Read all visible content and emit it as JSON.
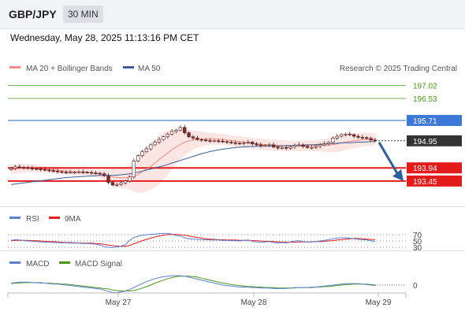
{
  "header": {
    "symbol": "GBP/JPY",
    "timeframe": "30 MIN"
  },
  "datetime": "Wednesday, May 28, 2025 11:13:16 PM CET",
  "copyright": "Research © 2025 Trading Central",
  "colors": {
    "ma20": "#f28b82",
    "ma50": "#3a5f9a",
    "resistance": "#4a9a1a",
    "pivot": "#3b78d8",
    "support": "#e31b1b",
    "last_price": "#333333",
    "arrow": "#2f5e9e",
    "up_candle": "#ffffff",
    "down_candle": "#7a2b2b",
    "rsi": "#5b7fd4",
    "rsi_ma": "#e31b1b",
    "macd": "#5b7fd4",
    "macd_signal": "#4a9a1a"
  },
  "chart_data": [
    {
      "type": "candlestick",
      "title": "GBP/JPY 30 MIN",
      "legend": [
        {
          "name": "MA 20 + Bollinger Bands",
          "color": "#f28b82"
        },
        {
          "name": "MA 50",
          "color": "#3a5f9a"
        }
      ],
      "x_ticks": [
        "May 27",
        "May 28",
        "May 29"
      ],
      "ylim": [
        192.8,
        197.5
      ],
      "last_price": 194.95,
      "levels": [
        {
          "value": 197.02,
          "label": "197.02",
          "kind": "resistance"
        },
        {
          "value": 196.53,
          "label": "196.53",
          "kind": "resistance"
        },
        {
          "value": 195.71,
          "label": "195.71",
          "kind": "pivot"
        },
        {
          "value": 193.94,
          "label": "193.94",
          "kind": "support"
        },
        {
          "value": 193.45,
          "label": "193.45",
          "kind": "support"
        }
      ],
      "forecast": {
        "from": 194.95,
        "to": 193.45,
        "direction": "down"
      },
      "close": [
        193.92,
        193.98,
        193.96,
        193.95,
        193.93,
        193.91,
        193.9,
        193.88,
        193.86,
        193.84,
        193.82,
        193.8,
        193.78,
        193.77,
        193.78,
        193.78,
        193.79,
        193.78,
        193.77,
        193.75,
        193.74,
        193.72,
        193.65,
        193.4,
        193.3,
        193.32,
        193.38,
        193.45,
        193.6,
        194.2,
        194.4,
        194.55,
        194.65,
        194.8,
        194.9,
        195.0,
        195.1,
        195.2,
        195.3,
        195.35,
        195.45,
        195.25,
        195.1,
        195.05,
        195.0,
        194.98,
        194.96,
        194.95,
        194.95,
        194.94,
        194.92,
        194.9,
        194.88,
        194.86,
        194.85,
        194.87,
        194.9,
        194.84,
        194.8,
        194.76,
        194.78,
        194.8,
        194.72,
        194.68,
        194.7,
        194.67,
        194.72,
        194.78,
        194.8,
        194.74,
        194.7,
        194.7,
        194.74,
        194.8,
        194.84,
        194.89,
        195.05,
        195.12,
        195.18,
        195.2,
        195.18,
        195.12,
        195.08,
        195.07,
        195.04,
        194.98,
        194.95
      ],
      "ma20": [
        193.88,
        193.9,
        193.92,
        193.93,
        193.93,
        193.92,
        193.91,
        193.9,
        193.89,
        193.88,
        193.86,
        193.85,
        193.84,
        193.82,
        193.8,
        193.79,
        193.79,
        193.78,
        193.77,
        193.76,
        193.74,
        193.72,
        193.68,
        193.64,
        193.6,
        193.58,
        193.57,
        193.57,
        193.58,
        193.62,
        193.7,
        193.8,
        193.9,
        194.0,
        194.12,
        194.25,
        194.38,
        194.5,
        194.62,
        194.72,
        194.82,
        194.9,
        194.95,
        194.98,
        195.0,
        195.01,
        195.02,
        195.02,
        195.02,
        195.01,
        195.0,
        194.98,
        194.96,
        194.94,
        194.92,
        194.9,
        194.88,
        194.86,
        194.84,
        194.82,
        194.81,
        194.8,
        194.79,
        194.78,
        194.77,
        194.76,
        194.76,
        194.76,
        194.76,
        194.76,
        194.77,
        194.77,
        194.77,
        194.77,
        194.78,
        194.79,
        194.81,
        194.84,
        194.87,
        194.9,
        194.93,
        194.95,
        194.97,
        194.99,
        195.0,
        195.0,
        195.0
      ],
      "bb_width": [
        0.16,
        0.17,
        0.17,
        0.17,
        0.16,
        0.15,
        0.14,
        0.13,
        0.12,
        0.12,
        0.12,
        0.12,
        0.12,
        0.12,
        0.12,
        0.12,
        0.12,
        0.12,
        0.12,
        0.13,
        0.14,
        0.16,
        0.2,
        0.26,
        0.32,
        0.36,
        0.38,
        0.4,
        0.45,
        0.58,
        0.7,
        0.78,
        0.84,
        0.88,
        0.9,
        0.9,
        0.88,
        0.82,
        0.74,
        0.64,
        0.56,
        0.48,
        0.42,
        0.36,
        0.32,
        0.28,
        0.25,
        0.23,
        0.22,
        0.21,
        0.2,
        0.2,
        0.2,
        0.2,
        0.2,
        0.2,
        0.2,
        0.2,
        0.2,
        0.2,
        0.2,
        0.2,
        0.2,
        0.2,
        0.2,
        0.2,
        0.2,
        0.2,
        0.2,
        0.2,
        0.2,
        0.2,
        0.2,
        0.22,
        0.24,
        0.26,
        0.28,
        0.3,
        0.31,
        0.3,
        0.29,
        0.28,
        0.27,
        0.26,
        0.25,
        0.24,
        0.24
      ],
      "ma50": [
        193.32,
        193.34,
        193.36,
        193.38,
        193.4,
        193.42,
        193.44,
        193.46,
        193.48,
        193.5,
        193.52,
        193.54,
        193.56,
        193.58,
        193.59,
        193.6,
        193.61,
        193.62,
        193.63,
        193.64,
        193.65,
        193.66,
        193.66,
        193.66,
        193.66,
        193.67,
        193.68,
        193.7,
        193.72,
        193.75,
        193.78,
        193.82,
        193.86,
        193.9,
        193.94,
        193.98,
        194.02,
        194.07,
        194.12,
        194.17,
        194.22,
        194.27,
        194.32,
        194.37,
        194.42,
        194.47,
        194.51,
        194.55,
        194.58,
        194.61,
        194.64,
        194.66,
        194.68,
        194.7,
        194.71,
        194.72,
        194.73,
        194.74,
        194.75,
        194.76,
        194.76,
        194.76,
        194.76,
        194.76,
        194.76,
        194.77,
        194.77,
        194.78,
        194.78,
        194.79,
        194.8,
        194.8,
        194.81,
        194.82,
        194.83,
        194.84,
        194.85,
        194.86,
        194.87,
        194.88,
        194.88,
        194.89,
        194.9,
        194.9,
        194.91,
        194.92,
        194.92
      ]
    },
    {
      "type": "line",
      "title": "RSI",
      "legend": [
        {
          "name": "RSI",
          "color": "#5b7fd4"
        },
        {
          "name": "9MA",
          "color": "#e31b1b"
        }
      ],
      "y_ticks": [
        "70",
        "50",
        "30"
      ],
      "ylim": [
        20,
        90
      ],
      "series": [
        {
          "name": "RSI",
          "values": [
            52,
            54,
            53,
            51,
            50,
            49,
            48,
            47,
            46,
            46,
            45,
            45,
            44,
            44,
            43,
            43,
            43,
            42,
            42,
            41,
            40,
            37,
            32,
            30,
            29,
            31,
            34,
            38,
            52,
            61,
            65,
            68,
            70,
            71,
            72,
            73,
            74,
            74,
            72,
            67,
            66,
            60,
            57,
            56,
            55,
            54,
            54,
            53,
            53,
            53,
            52,
            52,
            51,
            51,
            50,
            52,
            53,
            49,
            47,
            46,
            47,
            48,
            45,
            44,
            45,
            44,
            47,
            50,
            51,
            48,
            47,
            47,
            48,
            50,
            52,
            54,
            57,
            59,
            60,
            60,
            59,
            57,
            55,
            54,
            53,
            51,
            48
          ]
        },
        {
          "name": "9MA",
          "values": [
            51,
            52,
            52,
            52,
            52,
            51,
            51,
            50,
            49,
            48,
            48,
            47,
            46,
            45,
            45,
            44,
            44,
            43,
            43,
            43,
            42,
            41,
            39,
            37,
            35,
            34,
            33,
            33,
            36,
            41,
            46,
            51,
            55,
            59,
            63,
            66,
            68,
            70,
            71,
            71,
            70,
            68,
            66,
            63,
            61,
            59,
            57,
            56,
            55,
            54,
            54,
            53,
            53,
            53,
            52,
            52,
            52,
            51,
            51,
            50,
            49,
            49,
            48,
            47,
            47,
            46,
            46,
            46,
            47,
            47,
            47,
            47,
            48,
            48,
            49,
            50,
            51,
            53,
            54,
            56,
            57,
            58,
            58,
            57,
            56,
            55,
            54
          ]
        }
      ]
    },
    {
      "type": "line",
      "title": "MACD",
      "legend": [
        {
          "name": "MACD",
          "color": "#5b7fd4"
        },
        {
          "name": "MACD Signal",
          "color": "#4a9a1a"
        }
      ],
      "y_ticks": [
        "0"
      ],
      "ylim": [
        -0.35,
        0.35
      ],
      "series": [
        {
          "name": "MACD",
          "values": [
            0.04,
            0.05,
            0.06,
            0.06,
            0.06,
            0.05,
            0.05,
            0.04,
            0.04,
            0.03,
            0.02,
            0.02,
            0.01,
            0.0,
            -0.01,
            -0.02,
            -0.03,
            -0.04,
            -0.05,
            -0.06,
            -0.07,
            -0.08,
            -0.1,
            -0.13,
            -0.15,
            -0.15,
            -0.14,
            -0.12,
            -0.09,
            -0.05,
            -0.01,
            0.03,
            0.07,
            0.1,
            0.13,
            0.15,
            0.17,
            0.18,
            0.19,
            0.19,
            0.19,
            0.18,
            0.16,
            0.14,
            0.12,
            0.1,
            0.08,
            0.06,
            0.04,
            0.02,
            0.0,
            -0.01,
            -0.02,
            -0.03,
            -0.04,
            -0.04,
            -0.04,
            -0.05,
            -0.05,
            -0.06,
            -0.06,
            -0.06,
            -0.07,
            -0.07,
            -0.07,
            -0.07,
            -0.06,
            -0.05,
            -0.05,
            -0.05,
            -0.05,
            -0.04,
            -0.04,
            -0.03,
            -0.02,
            -0.01,
            0.0,
            0.01,
            0.02,
            0.03,
            0.03,
            0.03,
            0.03,
            0.02,
            0.01,
            0.0,
            -0.01
          ]
        },
        {
          "name": "MACD Signal",
          "values": [
            0.03,
            0.04,
            0.04,
            0.05,
            0.05,
            0.05,
            0.05,
            0.05,
            0.04,
            0.04,
            0.03,
            0.03,
            0.02,
            0.02,
            0.01,
            0.0,
            -0.01,
            -0.02,
            -0.03,
            -0.04,
            -0.05,
            -0.06,
            -0.07,
            -0.08,
            -0.1,
            -0.11,
            -0.12,
            -0.12,
            -0.12,
            -0.11,
            -0.09,
            -0.06,
            -0.03,
            0.0,
            0.04,
            0.07,
            0.1,
            0.13,
            0.15,
            0.17,
            0.18,
            0.18,
            0.18,
            0.17,
            0.16,
            0.14,
            0.12,
            0.1,
            0.08,
            0.06,
            0.04,
            0.03,
            0.01,
            0.0,
            -0.01,
            -0.02,
            -0.03,
            -0.03,
            -0.04,
            -0.04,
            -0.05,
            -0.05,
            -0.05,
            -0.06,
            -0.06,
            -0.06,
            -0.06,
            -0.06,
            -0.05,
            -0.05,
            -0.05,
            -0.05,
            -0.04,
            -0.04,
            -0.03,
            -0.03,
            -0.02,
            -0.01,
            0.0,
            0.01,
            0.01,
            0.02,
            0.02,
            0.02,
            0.02,
            0.01,
            0.0
          ]
        }
      ]
    }
  ]
}
